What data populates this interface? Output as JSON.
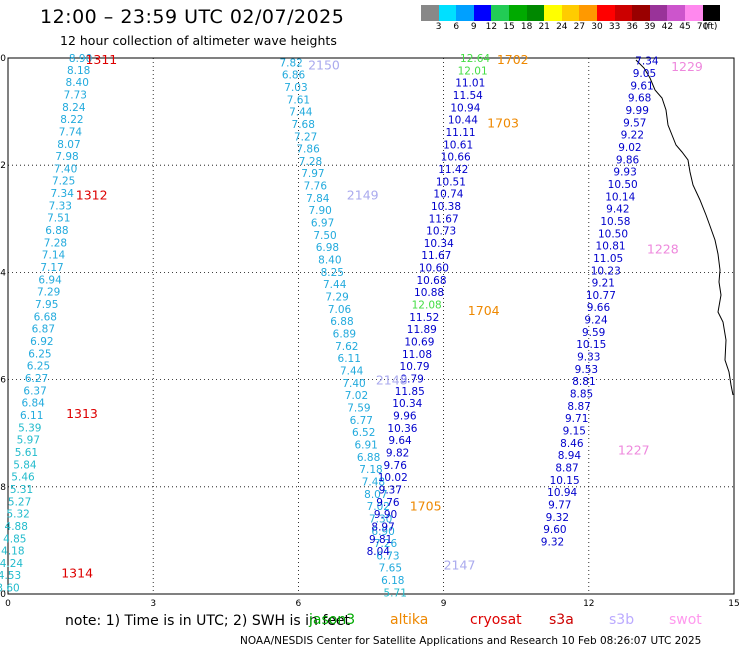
{
  "header": {
    "title": "12:00 – 23:59 UTC 02/07/2025",
    "subtitle": "12 hour collection of altimeter wave heights"
  },
  "colorbar": {
    "colors": [
      "#888888",
      "#00e0ff",
      "#00a0ff",
      "#0000ff",
      "#22cc55",
      "#00aa00",
      "#008800",
      "#ffff00",
      "#ffcc00",
      "#ff9900",
      "#ff0000",
      "#cc0000",
      "#990000",
      "#993399",
      "#cc55cc",
      "#ff88ee",
      "#000000"
    ],
    "labels": [
      "3",
      "6",
      "9",
      "12",
      "15",
      "18",
      "21",
      "24",
      "27",
      "30",
      "33",
      "36",
      "39",
      "42",
      "45",
      "70",
      "(ft)"
    ]
  },
  "axes": {
    "y_ticks": [
      "20",
      "22",
      "24",
      "26",
      "28",
      "30"
    ],
    "x_ticks": [
      "0",
      "3",
      "6",
      "9",
      "12",
      "15"
    ]
  },
  "track_labels": [
    {
      "text": "1311",
      "color": "#dd0000",
      "x": 1.6,
      "y": 20.02
    },
    {
      "text": "1312",
      "color": "#dd0000",
      "x": 1.4,
      "y": 22.55
    },
    {
      "text": "1313",
      "color": "#dd0000",
      "x": 1.2,
      "y": 26.62
    },
    {
      "text": "1314",
      "color": "#dd0000",
      "x": 1.1,
      "y": 29.6
    },
    {
      "text": "2150",
      "color": "#aaaaee",
      "x": 6.2,
      "y": 20.12
    },
    {
      "text": "2149",
      "color": "#aaaaee",
      "x": 7.0,
      "y": 22.55
    },
    {
      "text": "2148",
      "color": "#aaaaee",
      "x": 7.6,
      "y": 26.0
    },
    {
      "text": "2147",
      "color": "#aaaaee",
      "x": 9.0,
      "y": 29.45
    },
    {
      "text": "1702",
      "color": "#ee8800",
      "x": 10.1,
      "y": 20.02
    },
    {
      "text": "1703",
      "color": "#ee8800",
      "x": 9.9,
      "y": 21.2
    },
    {
      "text": "1704",
      "color": "#ee8800",
      "x": 9.5,
      "y": 24.7
    },
    {
      "text": "1705",
      "color": "#ee8800",
      "x": 8.3,
      "y": 28.35
    },
    {
      "text": "1229",
      "color": "#ee88dd",
      "x": 13.7,
      "y": 20.15
    },
    {
      "text": "1228",
      "color": "#ee88dd",
      "x": 13.2,
      "y": 23.55
    },
    {
      "text": "1227",
      "color": "#ee88dd",
      "x": 12.6,
      "y": 27.3
    }
  ],
  "series": [
    {
      "name": "1311-1314",
      "color": "#22aadd",
      "points": [
        {
          "x": 1.5,
          "y": 20.0,
          "v": "8.90"
        },
        {
          "x": 1.46,
          "y": 20.22,
          "v": "8.18"
        },
        {
          "x": 1.43,
          "y": 20.45,
          "v": "8.40"
        },
        {
          "x": 1.39,
          "y": 20.68,
          "v": "7.73"
        },
        {
          "x": 1.36,
          "y": 20.91,
          "v": "8.24"
        },
        {
          "x": 1.32,
          "y": 21.14,
          "v": "8.22"
        },
        {
          "x": 1.29,
          "y": 21.37,
          "v": "7.74"
        },
        {
          "x": 1.26,
          "y": 21.6,
          "v": "8.07"
        },
        {
          "x": 1.22,
          "y": 21.83,
          "v": "7.98"
        },
        {
          "x": 1.19,
          "y": 22.06,
          "v": "7.40"
        },
        {
          "x": 1.15,
          "y": 22.29,
          "v": "7.25"
        },
        {
          "x": 1.12,
          "y": 22.52,
          "v": "7.34"
        },
        {
          "x": 1.08,
          "y": 22.75,
          "v": "7.33"
        },
        {
          "x": 1.05,
          "y": 22.98,
          "v": "7.51"
        },
        {
          "x": 1.01,
          "y": 23.21,
          "v": "6.88"
        },
        {
          "x": 0.98,
          "y": 23.44,
          "v": "7.28"
        },
        {
          "x": 0.94,
          "y": 23.67,
          "v": "7.14"
        },
        {
          "x": 0.91,
          "y": 23.9,
          "v": "7.17"
        },
        {
          "x": 0.87,
          "y": 24.13,
          "v": "6.94"
        },
        {
          "x": 0.84,
          "y": 24.36,
          "v": "7.29"
        },
        {
          "x": 0.8,
          "y": 24.59,
          "v": "7.95"
        },
        {
          "x": 0.77,
          "y": 24.82,
          "v": "6.68"
        },
        {
          "x": 0.73,
          "y": 25.05,
          "v": "6.87"
        },
        {
          "x": 0.7,
          "y": 25.28,
          "v": "6.92"
        },
        {
          "x": 0.66,
          "y": 25.51,
          "v": "6.25"
        },
        {
          "x": 0.63,
          "y": 25.74,
          "v": "6.25"
        },
        {
          "x": 0.59,
          "y": 25.97,
          "v": "6.27"
        },
        {
          "x": 0.56,
          "y": 26.2,
          "v": "6.37"
        },
        {
          "x": 0.52,
          "y": 26.43,
          "v": "6.84"
        },
        {
          "x": 0.49,
          "y": 26.66,
          "v": "6.11"
        },
        {
          "x": 0.45,
          "y": 26.89,
          "v": "5.39"
        },
        {
          "x": 0.42,
          "y": 27.12,
          "v": "5.97"
        },
        {
          "x": 0.38,
          "y": 27.35,
          "v": "5.61"
        },
        {
          "x": 0.35,
          "y": 27.58,
          "v": "5.84"
        },
        {
          "x": 0.31,
          "y": 27.81,
          "v": "5.46"
        },
        {
          "x": 0.28,
          "y": 28.04,
          "v": "5.31"
        },
        {
          "x": 0.24,
          "y": 28.27,
          "v": "5.27"
        },
        {
          "x": 0.21,
          "y": 28.5,
          "v": "5.32"
        },
        {
          "x": 0.17,
          "y": 28.73,
          "v": "4.88"
        },
        {
          "x": 0.14,
          "y": 28.96,
          "v": "4.85"
        },
        {
          "x": 0.1,
          "y": 29.19,
          "v": "4.18"
        },
        {
          "x": 0.07,
          "y": 29.42,
          "v": "4.24"
        },
        {
          "x": 0.03,
          "y": 29.65,
          "v": "4.53"
        },
        {
          "x": 0.0,
          "y": 29.88,
          "v": "3.60"
        }
      ]
    },
    {
      "name": "2150-2147",
      "color": "#22aadd",
      "points": [
        {
          "x": 5.85,
          "y": 20.08,
          "v": "7.82"
        },
        {
          "x": 5.9,
          "y": 20.31,
          "v": "6.86"
        },
        {
          "x": 5.95,
          "y": 20.54,
          "v": "7.03"
        },
        {
          "x": 6.0,
          "y": 20.77,
          "v": "7.61"
        },
        {
          "x": 6.05,
          "y": 21.0,
          "v": "7.44"
        },
        {
          "x": 6.1,
          "y": 21.23,
          "v": "7.68"
        },
        {
          "x": 6.15,
          "y": 21.46,
          "v": "7.27"
        },
        {
          "x": 6.2,
          "y": 21.69,
          "v": "7.86"
        },
        {
          "x": 6.25,
          "y": 21.92,
          "v": "7.28"
        },
        {
          "x": 6.3,
          "y": 22.15,
          "v": "7.97"
        },
        {
          "x": 6.35,
          "y": 22.38,
          "v": "7.76"
        },
        {
          "x": 6.4,
          "y": 22.61,
          "v": "7.84"
        },
        {
          "x": 6.45,
          "y": 22.84,
          "v": "7.90"
        },
        {
          "x": 6.5,
          "y": 23.07,
          "v": "6.97"
        },
        {
          "x": 6.55,
          "y": 23.3,
          "v": "7.50"
        },
        {
          "x": 6.6,
          "y": 23.53,
          "v": "6.98"
        },
        {
          "x": 6.65,
          "y": 23.76,
          "v": "8.40"
        },
        {
          "x": 6.7,
          "y": 23.99,
          "v": "8.25"
        },
        {
          "x": 6.75,
          "y": 24.22,
          "v": "7.44"
        },
        {
          "x": 6.8,
          "y": 24.45,
          "v": "7.29"
        },
        {
          "x": 6.85,
          "y": 24.68,
          "v": "7.06"
        },
        {
          "x": 6.9,
          "y": 24.91,
          "v": "6.88"
        },
        {
          "x": 6.95,
          "y": 25.14,
          "v": "6.89"
        },
        {
          "x": 7.0,
          "y": 25.37,
          "v": "7.62"
        },
        {
          "x": 7.05,
          "y": 25.6,
          "v": "6.11"
        },
        {
          "x": 7.1,
          "y": 25.83,
          "v": "7.44"
        },
        {
          "x": 7.15,
          "y": 26.06,
          "v": "7.40"
        },
        {
          "x": 7.2,
          "y": 26.29,
          "v": "7.02"
        },
        {
          "x": 7.25,
          "y": 26.52,
          "v": "7.59"
        },
        {
          "x": 7.3,
          "y": 26.75,
          "v": "6.77"
        },
        {
          "x": 7.35,
          "y": 26.98,
          "v": "6.52"
        },
        {
          "x": 7.4,
          "y": 27.21,
          "v": "6.91"
        },
        {
          "x": 7.45,
          "y": 27.44,
          "v": "6.88"
        },
        {
          "x": 7.5,
          "y": 27.67,
          "v": "7.18"
        },
        {
          "x": 7.55,
          "y": 27.9,
          "v": "7.48"
        },
        {
          "x": 7.6,
          "y": 28.13,
          "v": "8.07"
        },
        {
          "x": 7.65,
          "y": 28.36,
          "v": "7.02"
        },
        {
          "x": 7.7,
          "y": 28.59,
          "v": "7.30"
        },
        {
          "x": 7.75,
          "y": 28.82,
          "v": "6.90"
        },
        {
          "x": 7.8,
          "y": 29.05,
          "v": "7.26"
        },
        {
          "x": 7.85,
          "y": 29.28,
          "v": "6.73"
        },
        {
          "x": 7.9,
          "y": 29.51,
          "v": "7.65"
        },
        {
          "x": 7.95,
          "y": 29.74,
          "v": "6.18"
        },
        {
          "x": 8.0,
          "y": 29.97,
          "v": "5.71"
        }
      ]
    },
    {
      "name": "1702-1705",
      "color": "#0000cc",
      "points": [
        {
          "x": 9.65,
          "y": 20.0,
          "v": "12.64"
        },
        {
          "x": 9.6,
          "y": 20.23,
          "v": "12.01"
        },
        {
          "x": 9.55,
          "y": 20.46,
          "v": "11.01"
        },
        {
          "x": 9.5,
          "y": 20.69,
          "v": "11.54"
        },
        {
          "x": 9.45,
          "y": 20.92,
          "v": "10.94"
        },
        {
          "x": 9.4,
          "y": 21.15,
          "v": "10.44"
        },
        {
          "x": 9.35,
          "y": 21.38,
          "v": "11.11"
        },
        {
          "x": 9.3,
          "y": 21.61,
          "v": "10.61"
        },
        {
          "x": 9.25,
          "y": 21.84,
          "v": "10.66"
        },
        {
          "x": 9.2,
          "y": 22.07,
          "v": "11.42"
        },
        {
          "x": 9.15,
          "y": 22.3,
          "v": "10.51"
        },
        {
          "x": 9.1,
          "y": 22.53,
          "v": "10.74"
        },
        {
          "x": 9.05,
          "y": 22.76,
          "v": "10.38"
        },
        {
          "x": 9.0,
          "y": 22.99,
          "v": "11.67"
        },
        {
          "x": 8.95,
          "y": 23.22,
          "v": "10.73"
        },
        {
          "x": 8.9,
          "y": 23.45,
          "v": "10.34"
        },
        {
          "x": 8.85,
          "y": 23.68,
          "v": "11.67"
        },
        {
          "x": 8.8,
          "y": 23.91,
          "v": "10.60"
        },
        {
          "x": 8.75,
          "y": 24.14,
          "v": "10.68"
        },
        {
          "x": 8.7,
          "y": 24.37,
          "v": "10.88"
        },
        {
          "x": 8.65,
          "y": 24.6,
          "v": "12.08"
        },
        {
          "x": 8.6,
          "y": 24.83,
          "v": "11.52"
        },
        {
          "x": 8.55,
          "y": 25.06,
          "v": "11.89"
        },
        {
          "x": 8.5,
          "y": 25.29,
          "v": "10.69"
        },
        {
          "x": 8.45,
          "y": 25.52,
          "v": "11.08"
        },
        {
          "x": 8.4,
          "y": 25.75,
          "v": "10.79"
        },
        {
          "x": 8.35,
          "y": 25.98,
          "v": "9.79"
        },
        {
          "x": 8.3,
          "y": 26.21,
          "v": "11.85"
        },
        {
          "x": 8.25,
          "y": 26.44,
          "v": "10.34"
        },
        {
          "x": 8.2,
          "y": 26.67,
          "v": "9.96"
        },
        {
          "x": 8.15,
          "y": 26.9,
          "v": "10.36"
        },
        {
          "x": 8.1,
          "y": 27.13,
          "v": "9.64"
        },
        {
          "x": 8.05,
          "y": 27.36,
          "v": "9.82"
        },
        {
          "x": 8.0,
          "y": 27.59,
          "v": "9.76"
        },
        {
          "x": 7.95,
          "y": 27.82,
          "v": "10.02"
        },
        {
          "x": 7.9,
          "y": 28.05,
          "v": "9.37"
        },
        {
          "x": 7.85,
          "y": 28.28,
          "v": "9.76"
        },
        {
          "x": 7.8,
          "y": 28.51,
          "v": "9.90"
        },
        {
          "x": 7.75,
          "y": 28.74,
          "v": "8.97"
        },
        {
          "x": 7.7,
          "y": 28.97,
          "v": "9.81"
        },
        {
          "x": 7.65,
          "y": 29.2,
          "v": "8.04"
        }
      ]
    },
    {
      "name": "1229-1227",
      "color": "#0000cc",
      "points": [
        {
          "x": 13.2,
          "y": 20.05,
          "v": "7.34"
        },
        {
          "x": 13.15,
          "y": 20.28,
          "v": "9.05"
        },
        {
          "x": 13.1,
          "y": 20.51,
          "v": "9.61"
        },
        {
          "x": 13.05,
          "y": 20.74,
          "v": "9.68"
        },
        {
          "x": 13.0,
          "y": 20.97,
          "v": "9.99"
        },
        {
          "x": 12.95,
          "y": 21.2,
          "v": "9.57"
        },
        {
          "x": 12.9,
          "y": 21.43,
          "v": "9.22"
        },
        {
          "x": 12.85,
          "y": 21.66,
          "v": "9.02"
        },
        {
          "x": 12.8,
          "y": 21.89,
          "v": "9.86"
        },
        {
          "x": 12.75,
          "y": 22.12,
          "v": "9.93"
        },
        {
          "x": 12.7,
          "y": 22.35,
          "v": "10.50"
        },
        {
          "x": 12.65,
          "y": 22.58,
          "v": "10.14"
        },
        {
          "x": 12.6,
          "y": 22.81,
          "v": "9.42"
        },
        {
          "x": 12.55,
          "y": 23.04,
          "v": "10.58"
        },
        {
          "x": 12.5,
          "y": 23.27,
          "v": "10.50"
        },
        {
          "x": 12.45,
          "y": 23.5,
          "v": "10.81"
        },
        {
          "x": 12.4,
          "y": 23.73,
          "v": "11.05"
        },
        {
          "x": 12.35,
          "y": 23.96,
          "v": "10.23"
        },
        {
          "x": 12.3,
          "y": 24.19,
          "v": "9.21"
        },
        {
          "x": 12.25,
          "y": 24.42,
          "v": "10.77"
        },
        {
          "x": 12.2,
          "y": 24.65,
          "v": "9.66"
        },
        {
          "x": 12.15,
          "y": 24.88,
          "v": "9.24"
        },
        {
          "x": 12.1,
          "y": 25.11,
          "v": "9.59"
        },
        {
          "x": 12.05,
          "y": 25.34,
          "v": "10.15"
        },
        {
          "x": 12.0,
          "y": 25.57,
          "v": "9.33"
        },
        {
          "x": 11.95,
          "y": 25.8,
          "v": "9.53"
        },
        {
          "x": 11.9,
          "y": 26.03,
          "v": "8.81"
        },
        {
          "x": 11.85,
          "y": 26.26,
          "v": "8.85"
        },
        {
          "x": 11.8,
          "y": 26.49,
          "v": "8.87"
        },
        {
          "x": 11.75,
          "y": 26.72,
          "v": "9.71"
        },
        {
          "x": 11.7,
          "y": 26.95,
          "v": "9.15"
        },
        {
          "x": 11.65,
          "y": 27.18,
          "v": "8.46"
        },
        {
          "x": 11.6,
          "y": 27.41,
          "v": "8.94"
        },
        {
          "x": 11.55,
          "y": 27.64,
          "v": "8.87"
        },
        {
          "x": 11.5,
          "y": 27.87,
          "v": "10.15"
        },
        {
          "x": 11.45,
          "y": 28.1,
          "v": "10.94"
        },
        {
          "x": 11.4,
          "y": 28.33,
          "v": "9.77"
        },
        {
          "x": 11.35,
          "y": 28.56,
          "v": "9.32"
        },
        {
          "x": 11.3,
          "y": 28.79,
          "v": "9.60"
        },
        {
          "x": 11.25,
          "y": 29.02,
          "v": "9.32"
        }
      ]
    }
  ],
  "note": "note:  1) Time is in UTC; 2) SWH is in feet",
  "satellites": [
    {
      "name": "jason3",
      "color": "#00aa00"
    },
    {
      "name": "altika",
      "color": "#ee8800"
    },
    {
      "name": "cryosat",
      "color": "#dd0000"
    },
    {
      "name": "s3a",
      "color": "#cc0000"
    },
    {
      "name": "s3b",
      "color": "#bbaaff"
    },
    {
      "name": "swot",
      "color": "#ff99ee"
    }
  ],
  "footer": "NOAA/NESDIS Center for Satellite Applications and Research    10 Feb 08:26:07 UTC 2025"
}
